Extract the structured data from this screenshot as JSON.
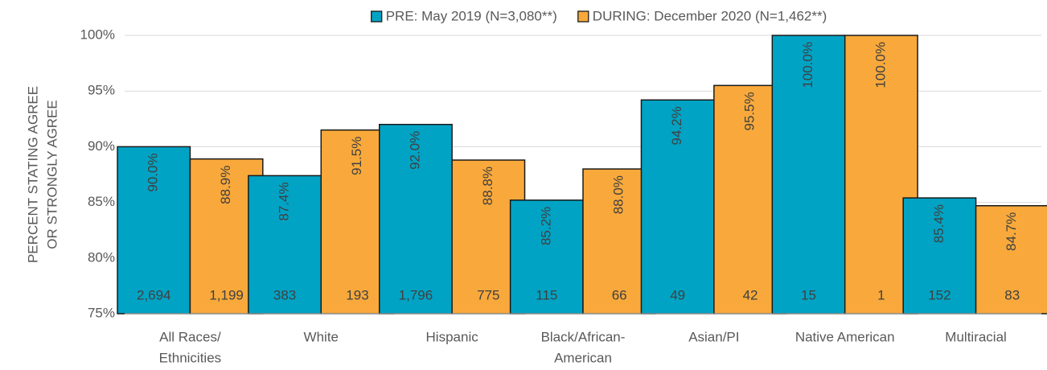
{
  "chart_data": {
    "type": "bar",
    "ylabel": [
      "PERCENT STATING AGREE",
      "OR STRONGLY AGREE"
    ],
    "categories": [
      [
        "All Races/",
        "Ethnicities"
      ],
      "White",
      "Hispanic",
      [
        "Black/African-",
        "American"
      ],
      "Asian/PI",
      "Native American",
      "Multiracial"
    ],
    "series": [
      {
        "name": "PRE: May 2019 (N=3,080**)",
        "color": "#00a3c4",
        "values": [
          90.0,
          87.4,
          92.0,
          85.2,
          94.2,
          100.0,
          85.4
        ],
        "value_labels": [
          "90.0%",
          "87.4%",
          "92.0%",
          "85.2%",
          "94.2%",
          "100.0%",
          "85.4%"
        ],
        "n_labels": [
          "2,694",
          "383",
          "1,796",
          "115",
          "49",
          "15",
          "152"
        ]
      },
      {
        "name": "DURING: December 2020 (N=1,462**)",
        "color": "#f9a93b",
        "values": [
          88.9,
          91.5,
          88.8,
          88.0,
          95.5,
          100.0,
          84.7
        ],
        "value_labels": [
          "88.9%",
          "91.5%",
          "88.8%",
          "88.0%",
          "95.5%",
          "100.0%",
          "84.7%"
        ],
        "n_labels": [
          "1,199",
          "193",
          "775",
          "66",
          "42",
          "1",
          "83"
        ]
      }
    ],
    "ylim": [
      75,
      100
    ],
    "yticks": [
      {
        "value": 75,
        "label": "75%"
      },
      {
        "value": 80,
        "label": "80%"
      },
      {
        "value": 85,
        "label": "85%"
      },
      {
        "value": 90,
        "label": "90%"
      },
      {
        "value": 95,
        "label": "95%"
      },
      {
        "value": 100,
        "label": "100%"
      }
    ],
    "grid": true,
    "legend": "top"
  }
}
